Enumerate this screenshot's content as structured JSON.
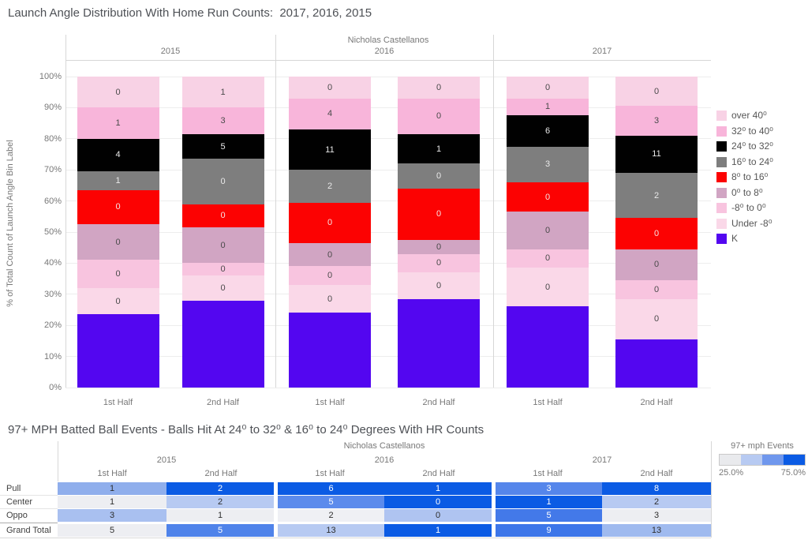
{
  "chart_data": [
    {
      "type": "bar",
      "subtype": "stacked-100-percent",
      "title": "Launch Angle Distribution With Home Run Counts:  2017, 2016, 2015",
      "facet": "Nicholas Castellanos",
      "ylabel": "% of Total Count of Launch Angle Bin Label",
      "ylim": [
        0,
        100
      ],
      "yticks": [
        "0%",
        "10%",
        "20%",
        "30%",
        "40%",
        "50%",
        "60%",
        "70%",
        "80%",
        "90%",
        "100%"
      ],
      "groups": [
        "2015",
        "2016",
        "2017"
      ],
      "x": [
        "1st Half",
        "2nd Half"
      ],
      "columns": [
        "2015 1st Half",
        "2015 2nd Half",
        "2016 1st Half",
        "2016 2nd Half",
        "2017 1st Half",
        "2017 2nd Half"
      ],
      "legend_position": "right",
      "grid": true,
      "series": [
        {
          "name": "over 40⁰",
          "color": "#F8D2E5",
          "label_color": "#4a4a4a",
          "pct": [
            10,
            10,
            7,
            7,
            7,
            9.5
          ],
          "hr": [
            0,
            1,
            0,
            0,
            0,
            0
          ]
        },
        {
          "name": "32⁰ to 40⁰",
          "color": "#F8B5DA",
          "label_color": "#4a4a4a",
          "pct": [
            10,
            8.5,
            10,
            11.5,
            5.5,
            9.5
          ],
          "hr": [
            1,
            3,
            4,
            0,
            1,
            3
          ]
        },
        {
          "name": "24⁰ to 32⁰",
          "color": "#010101",
          "label_color": "#e9e9e9",
          "pct": [
            10.5,
            8,
            13,
            9.5,
            10,
            12
          ],
          "hr": [
            4,
            5,
            11,
            1,
            6,
            11
          ]
        },
        {
          "name": "16⁰ to 24⁰",
          "color": "#7E7E7E",
          "label_color": "#e9e9e9",
          "pct": [
            6,
            14.5,
            10.5,
            8,
            11.5,
            14.5
          ],
          "hr": [
            1,
            0,
            2,
            0,
            3,
            2
          ]
        },
        {
          "name": "8⁰ to 16⁰",
          "color": "#FC0202",
          "label_color": "#f7e3e3",
          "pct": [
            11,
            7.5,
            13,
            16.5,
            9.5,
            10
          ],
          "hr": [
            0,
            0,
            0,
            0,
            0,
            0
          ]
        },
        {
          "name": "0⁰ to 8⁰",
          "color": "#D1A5C3",
          "label_color": "#4a4a4a",
          "pct": [
            11.5,
            11.5,
            7.5,
            4.5,
            12,
            10
          ],
          "hr": [
            0,
            0,
            0,
            0,
            0,
            0
          ]
        },
        {
          "name": "-8⁰ to 0⁰",
          "color": "#F8C4DF",
          "label_color": "#4a4a4a",
          "pct": [
            9,
            4,
            6,
            6,
            6,
            6
          ],
          "hr": [
            0,
            0,
            0,
            0,
            0,
            0
          ]
        },
        {
          "name": "Under -8⁰",
          "color": "#FAD8E8",
          "label_color": "#4a4a4a",
          "pct": [
            8.5,
            8,
            9,
            8.5,
            12.5,
            13
          ],
          "hr": [
            0,
            0,
            0,
            0,
            0,
            0
          ]
        },
        {
          "name": "K",
          "color": "#5306F0",
          "label_color": null,
          "pct": [
            23.5,
            28,
            24,
            28.5,
            26,
            15.5
          ],
          "hr": null
        }
      ]
    },
    {
      "type": "heatmap",
      "title": "97+ MPH Batted Ball Events - Balls Hit At 24⁰ to 32⁰ & 16⁰ to 24⁰ Degrees With HR Counts",
      "facet": "Nicholas Castellanos",
      "groups": [
        "2015",
        "2016",
        "2017"
      ],
      "x": [
        "1st Half",
        "2nd Half"
      ],
      "columns": [
        "2015 1st Half",
        "2015 2nd Half",
        "2016 1st Half",
        "2016 2nd Half",
        "2017 1st Half",
        "2017 2nd Half"
      ],
      "rows": [
        {
          "label": "Pull",
          "values": [
            1,
            2,
            6,
            1,
            3,
            8
          ],
          "bg": [
            "#8FAEEC",
            "#0B5BE4",
            "#0B5BE4",
            "#0B5BE4",
            "#5586EB",
            "#0B5BE4"
          ],
          "fg": [
            "#2e2e2e",
            "#ffffff",
            "#ffffff",
            "#ffffff",
            "#ffffff",
            "#ffffff"
          ]
        },
        {
          "label": "Center",
          "values": [
            1,
            2,
            5,
            0,
            1,
            2
          ],
          "bg": [
            "#EDEEF2",
            "#B7CAF2",
            "#5C8BEC",
            "#0B5BE4",
            "#0B5BE4",
            "#B7CAF2"
          ],
          "fg": [
            "#2e2e2e",
            "#2e2e2e",
            "#ffffff",
            "#ffffff",
            "#ffffff",
            "#2e2e2e"
          ]
        },
        {
          "label": "Oppo",
          "values": [
            3,
            1,
            2,
            0,
            5,
            3
          ],
          "bg": [
            "#A9C0F0",
            "#EDEEF2",
            "#EFF0F4",
            "#AFC4F1",
            "#4379E9",
            "#EDEEF2"
          ],
          "fg": [
            "#2e2e2e",
            "#2e2e2e",
            "#2e2e2e",
            "#2e2e2e",
            "#ffffff",
            "#2e2e2e"
          ]
        },
        {
          "label": "Grand Total",
          "values": [
            5,
            5,
            13,
            1,
            9,
            13
          ],
          "bg": [
            "#EDEEF2",
            "#4F83EA",
            "#B7CAF2",
            "#0B5BE4",
            "#3D76E9",
            "#9FBAEF"
          ],
          "fg": [
            "#2e2e2e",
            "#ffffff",
            "#2e2e2e",
            "#ffffff",
            "#ffffff",
            "#2e2e2e"
          ]
        }
      ],
      "legend": {
        "title": "97+ mph Events",
        "min": "25.0%",
        "max": "75.0%",
        "steps": [
          "#E9EAED",
          "#B7CAF2",
          "#6F97ED",
          "#0B5BE4"
        ]
      }
    }
  ]
}
